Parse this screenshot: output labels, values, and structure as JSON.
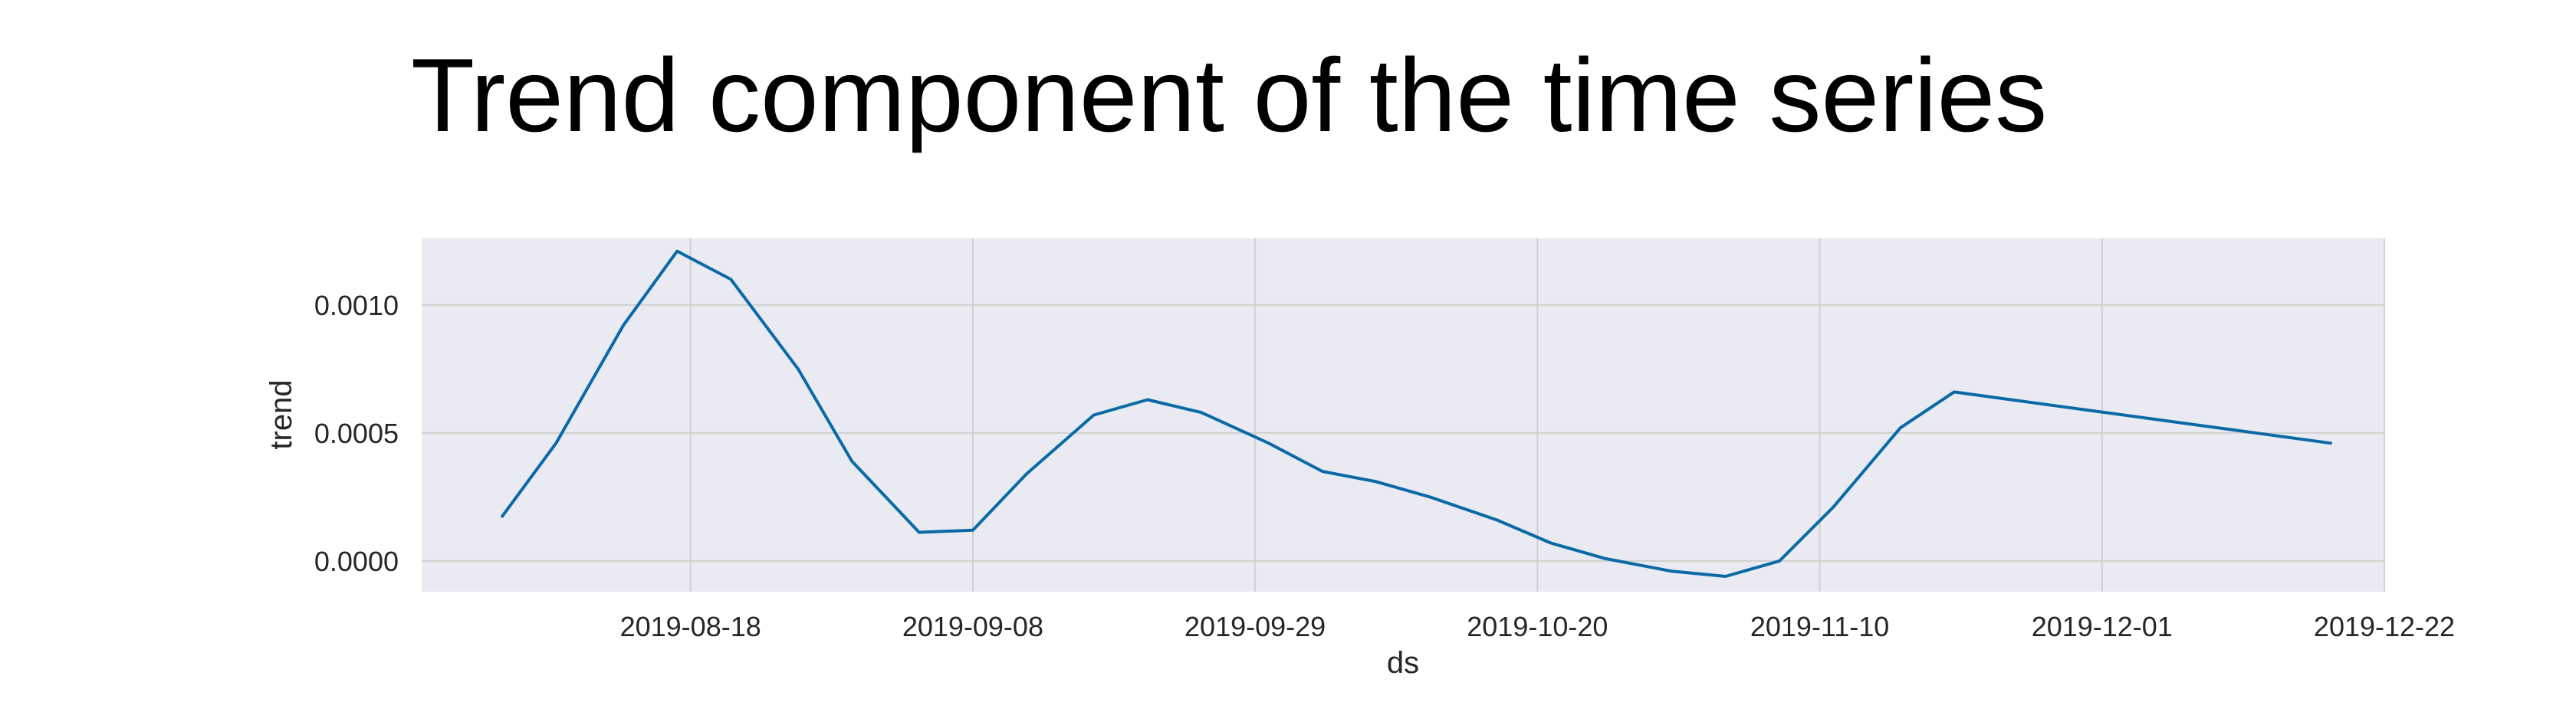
{
  "chart_data": {
    "type": "line",
    "title": "Trend component of the time series",
    "xlabel": "ds",
    "ylabel": "trend",
    "x_ticks": [
      "2019-08-18",
      "2019-09-08",
      "2019-09-29",
      "2019-10-20",
      "2019-11-10",
      "2019-12-01",
      "2019-12-22"
    ],
    "y_ticks": [
      "0.0000",
      "0.0005",
      "0.0010"
    ],
    "xlim": [
      "2019-07-29",
      "2019-12-22"
    ],
    "ylim": [
      -0.00012,
      0.00126
    ],
    "grid": true,
    "colors": {
      "line": "#0a6aa6",
      "plot_background": "#eaeaf2",
      "grid": "#d0d0d0"
    },
    "series": [
      {
        "x": [
          "2019-08-04",
          "2019-08-08",
          "2019-08-13",
          "2019-08-17",
          "2019-08-21",
          "2019-08-26",
          "2019-08-30",
          "2019-09-04",
          "2019-09-08",
          "2019-09-12",
          "2019-09-17",
          "2019-09-21",
          "2019-09-25",
          "2019-09-30",
          "2019-10-04",
          "2019-10-08",
          "2019-10-12",
          "2019-10-17",
          "2019-10-21",
          "2019-10-25",
          "2019-10-30",
          "2019-11-03",
          "2019-11-07",
          "2019-11-11",
          "2019-11-16",
          "2019-11-20",
          "2019-12-18"
        ],
        "values": [
          0.000175,
          0.00046,
          0.00092,
          0.00121,
          0.0011,
          0.00075,
          0.00039,
          0.000112,
          0.00012,
          0.00034,
          0.00057,
          0.00063,
          0.00058,
          0.00046,
          0.00035,
          0.00031,
          0.00025,
          0.00016,
          7e-05,
          1e-05,
          -4e-05,
          -6e-05,
          0.0,
          0.00021,
          0.00052,
          0.00066,
          0.00046
        ]
      }
    ]
  }
}
